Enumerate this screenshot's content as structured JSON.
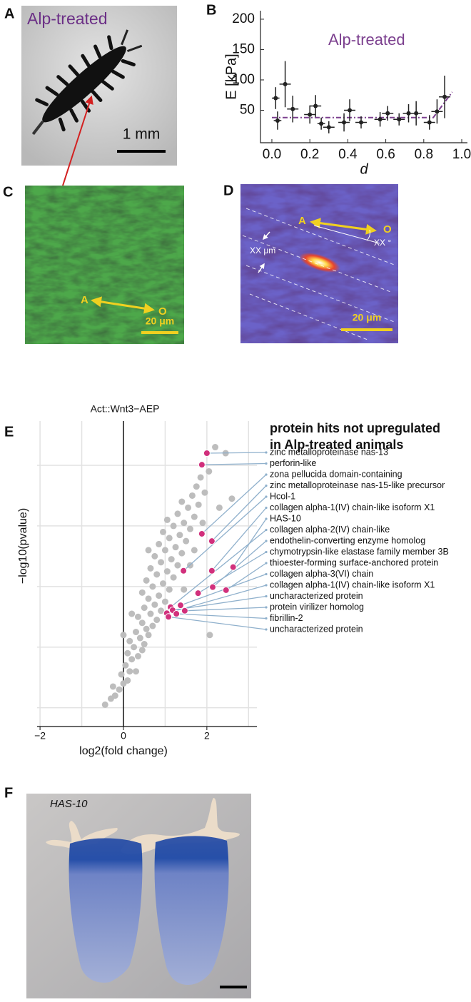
{
  "panel_labels": [
    "A",
    "B",
    "C",
    "D",
    "E",
    "F"
  ],
  "image_a": {
    "label": "Alp-treated",
    "scale": "1 mm"
  },
  "image_c": {
    "axis_start": "A",
    "axis_end": "O",
    "scale": "20 μm"
  },
  "image_d": {
    "axis_start": "A",
    "axis_end": "O",
    "angle": "XX °",
    "spacing": "XX μm",
    "scale": "20 μm"
  },
  "image_f": {
    "label": "HAS-10"
  },
  "chart_data": [
    {
      "type": "errorbar",
      "annotation": "Alp-treated",
      "ylabel": "E [kPa]",
      "xlabel": "d",
      "color": "#222222",
      "x": [
        0.02,
        0.03,
        0.07,
        0.11,
        0.2,
        0.23,
        0.26,
        0.3,
        0.38,
        0.41,
        0.47,
        0.57,
        0.61,
        0.67,
        0.72,
        0.76,
        0.83,
        0.87,
        0.91
      ],
      "y": [
        70,
        33,
        93,
        52,
        43,
        57,
        28,
        22,
        30,
        50,
        30,
        35,
        45,
        35,
        45,
        45,
        30,
        48,
        72
      ],
      "xerr": [
        0.02,
        0.02,
        0.03,
        0.03,
        0.03,
        0.03,
        0.02,
        0.03,
        0.03,
        0.03,
        0.03,
        0.03,
        0.03,
        0.03,
        0.03,
        0.03,
        0.03,
        0.03,
        0.03
      ],
      "yerr": [
        18,
        15,
        38,
        22,
        15,
        18,
        10,
        10,
        15,
        18,
        10,
        12,
        12,
        10,
        15,
        20,
        12,
        20,
        35
      ],
      "fit": {
        "color": "#7b3f8e",
        "x": [
          0,
          0.85,
          0.95
        ],
        "y": [
          38,
          38,
          80
        ]
      },
      "xlim": [
        -0.06,
        1.03
      ],
      "ylim": [
        -3.5,
        214
      ],
      "xticks": [
        {
          "value": 0,
          "label": "0.0"
        },
        0.2,
        0.4,
        0.6,
        0.8,
        {
          "value": 1,
          "label": "1.0"
        }
      ],
      "yticks": [
        50,
        100,
        150,
        200
      ]
    },
    {
      "type": "volcano",
      "title": "Act::Wnt3−AEP",
      "xlabel": "log2(fold change)",
      "ylabel": "−log10(pvalue)",
      "annotation": [
        "protein hits not upregulated",
        "in Alp-treated animals"
      ],
      "xlim": [
        -2.07,
        3.2
      ],
      "ylim": [
        -0.31,
        4.73
      ],
      "xticks": [
        {
          "value": -2,
          "label": "−2"
        },
        0,
        2
      ],
      "grid_x": [
        -2,
        -1,
        1,
        2,
        3
      ],
      "grid_y": [
        0,
        1,
        2,
        3,
        4
      ],
      "background": {
        "color": "#bdbdbd",
        "x": [
          -0.44,
          -0.3,
          -0.2,
          -0.1,
          -0.25,
          0.0,
          0.1,
          -0.05,
          0.15,
          0.3,
          0.05,
          0.2,
          0.35,
          0.1,
          0.45,
          0.25,
          0.5,
          0.15,
          0.4,
          0.6,
          0.3,
          0.55,
          0.7,
          0.45,
          0.8,
          0.35,
          0.65,
          0.9,
          0.5,
          0.75,
          1.0,
          0.6,
          0.85,
          0.45,
          1.1,
          0.7,
          0.95,
          0.55,
          1.2,
          0.8,
          1.05,
          0.65,
          1.3,
          0.9,
          1.15,
          0.75,
          1.4,
          1.0,
          1.25,
          0.85,
          1.5,
          1.1,
          1.35,
          0.95,
          1.6,
          1.2,
          1.45,
          1.05,
          1.7,
          1.3,
          1.55,
          1.8,
          1.4,
          1.65,
          1.95,
          1.75,
          2.6,
          2.3,
          1.85,
          2.05,
          2.45,
          2.2,
          2.07,
          1.6,
          1.45,
          0.2,
          0.0,
          0.6,
          1.7,
          1.9
        ],
        "y": [
          0.05,
          0.15,
          0.2,
          0.3,
          0.35,
          0.4,
          0.45,
          0.55,
          0.6,
          0.6,
          0.7,
          0.8,
          0.85,
          0.9,
          0.95,
          1.0,
          1.05,
          1.1,
          1.15,
          1.2,
          1.25,
          1.3,
          1.35,
          1.4,
          1.45,
          1.5,
          1.55,
          1.6,
          1.65,
          1.7,
          1.75,
          1.8,
          1.85,
          1.9,
          1.95,
          2.0,
          2.05,
          2.1,
          2.15,
          2.2,
          2.25,
          2.3,
          2.35,
          2.4,
          2.45,
          2.5,
          2.55,
          2.6,
          2.65,
          2.7,
          2.75,
          2.8,
          2.85,
          2.9,
          2.95,
          3.0,
          3.05,
          3.1,
          3.15,
          3.2,
          3.3,
          3.35,
          3.4,
          3.5,
          3.55,
          3.65,
          3.45,
          3.3,
          3.8,
          3.9,
          4.2,
          4.3,
          1.2,
          2.35,
          1.95,
          1.55,
          1.2,
          2.6,
          2.6,
          3.05
        ]
      },
      "hits": {
        "color": "#d1307c",
        "line_color": "#8fb0cc",
        "names": [
          "zinc metalloproteinase nas-13",
          "perforin-like",
          "zona pellucida domain-containing",
          "zinc metalloproteinase nas-15-like precursor",
          "Hcol-1",
          "collagen alpha-1(IV) chain-like isoform X1",
          "HAS-10",
          "collagen alpha-2(IV) chain-like",
          "endothelin-converting enzyme homolog",
          "chymotrypsin-like elastase family member 3B",
          "thioester-forming surface-anchored protein",
          "collagen alpha-3(VI) chain",
          "collagen alpha-1(IV) chain-like isoform X1",
          "uncharacterized protein",
          "protein virilizer homolog",
          "fibrillin-2",
          "uncharacterized protein"
        ],
        "x": [
          2.0,
          1.88,
          1.88,
          2.12,
          1.44,
          2.12,
          2.63,
          1.13,
          2.14,
          1.79,
          2.46,
          1.37,
          1.04,
          1.18,
          1.47,
          1.27,
          1.08
        ],
        "y": [
          4.2,
          4.01,
          2.87,
          2.75,
          2.26,
          2.26,
          2.32,
          1.66,
          1.99,
          1.89,
          1.94,
          1.69,
          1.56,
          1.61,
          1.6,
          1.55,
          1.5
        ]
      }
    }
  ]
}
